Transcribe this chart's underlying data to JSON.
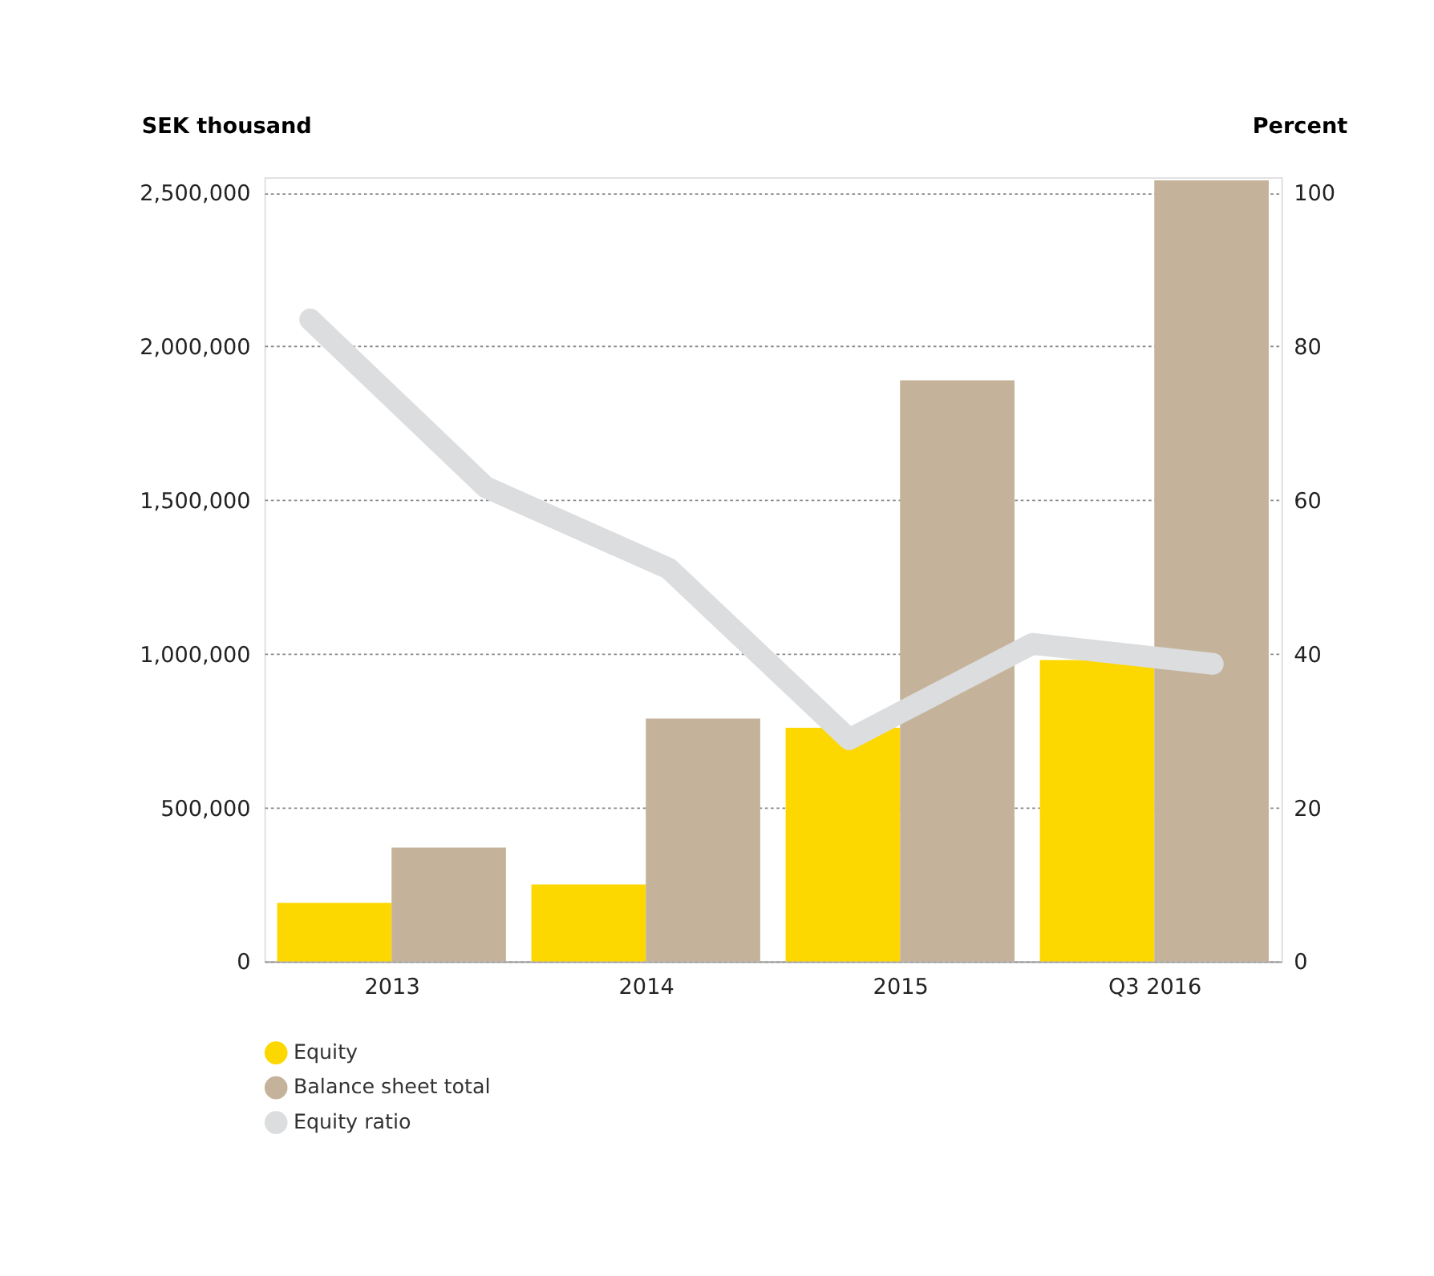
{
  "chart_data": {
    "type": "bar",
    "ylabel": "SEK thousand",
    "y2label": "Percent",
    "x": [
      2013,
      2014,
      2015,
      2016
    ],
    "xlim": [
      2012.5,
      2016.5
    ],
    "xticks": [
      2013,
      2014,
      2015,
      {
        "value": 2016,
        "label": "Q3 2016"
      }
    ],
    "series": [
      {
        "name": "Equity",
        "color": "#fdd700",
        "values": [
          190000,
          250000,
          760000,
          980000
        ]
      },
      {
        "name": "Balance sheet total",
        "color": "#c4b39a",
        "values": [
          370000,
          790000,
          1890000,
          2540000
        ]
      },
      {
        "name": "Equity ratio",
        "type": "line",
        "axis": "y2",
        "color": "#dcdddf",
        "x": [
          2012.68,
          2013.37,
          2014.09,
          2014.8,
          2015.52,
          2016.23
        ],
        "values": [
          83.5,
          61.7,
          51.1,
          28.9,
          41.3,
          38.7
        ]
      }
    ],
    "ylim": [
      0,
      2550000
    ],
    "yticks": [
      {
        "value": 0,
        "label": "0"
      },
      {
        "value": 500000,
        "label": "500,000"
      },
      {
        "value": 1000000,
        "label": "1,000,000"
      },
      {
        "value": 1500000,
        "label": "1,500,000"
      },
      {
        "value": 2000000,
        "label": "2,000,000"
      },
      {
        "value": 2500000,
        "label": "2,500,000"
      }
    ],
    "y2lim": [
      0,
      102
    ],
    "y2ticks": [
      0,
      20,
      40,
      60,
      80,
      100
    ],
    "grid": "y",
    "legend": "bottom left",
    "line_style": "solid"
  }
}
